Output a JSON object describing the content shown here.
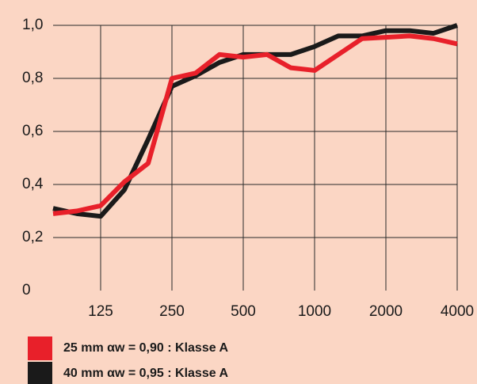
{
  "chart_data": {
    "type": "line",
    "categories": [
      null,
      null,
      "125",
      null,
      null,
      "250",
      null,
      null,
      "500",
      null,
      null,
      "1000",
      null,
      null,
      "2000",
      null,
      null,
      "4000"
    ],
    "series": [
      {
        "name": "25 mm αw = 0,90 : Klasse A",
        "color": "#e8202a",
        "values": [
          0.29,
          0.3,
          0.32,
          0.41,
          0.48,
          0.8,
          0.82,
          0.89,
          0.88,
          0.89,
          0.84,
          0.83,
          0.89,
          0.95,
          0.955,
          0.96,
          0.95,
          0.93
        ]
      },
      {
        "name": "40 mm αw = 0,95 : Klasse A",
        "color": "#1a1a1a",
        "values": [
          0.31,
          0.29,
          0.28,
          0.38,
          0.57,
          0.77,
          0.81,
          0.86,
          0.89,
          0.89,
          0.89,
          0.92,
          0.96,
          0.96,
          0.98,
          0.98,
          0.97,
          1.0
        ]
      }
    ],
    "ylim": [
      0,
      1.0
    ],
    "yticks": [
      0,
      {
        "value": 0.2,
        "label": "0,2"
      },
      {
        "value": 0.4,
        "label": "0,4"
      },
      {
        "value": 0.6,
        "label": "0,6"
      },
      {
        "value": 0.8,
        "label": "0,8"
      },
      {
        "value": 1.0,
        "label": "1,0"
      }
    ],
    "grid": true
  }
}
